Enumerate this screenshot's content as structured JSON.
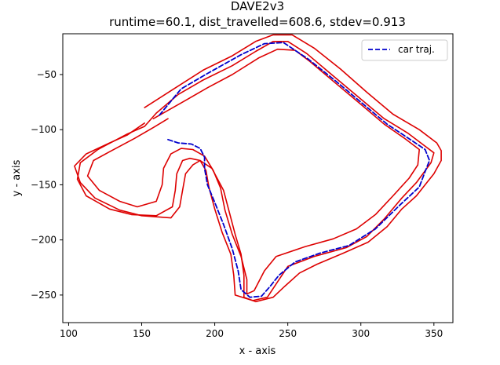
{
  "chart_data": {
    "type": "line",
    "title": "DAVE2v3",
    "subtitle": "runtime=60.1, dist_travelled=608.6, stdev=0.913",
    "xlabel": "x - axis",
    "ylabel": "y - axis",
    "xlim": [
      96,
      363
    ],
    "ylim": [
      -275,
      -13
    ],
    "xticks": [
      100,
      150,
      200,
      250,
      300,
      350
    ],
    "yticks": [
      -50,
      -100,
      -150,
      -200,
      -250
    ],
    "grid": false,
    "legend": {
      "placement": "top-right",
      "entries": [
        "car traj."
      ]
    },
    "series": [
      {
        "name": "car traj.",
        "style": "dashed",
        "color": "#0000cc",
        "points": [
          [
            168,
            -109
          ],
          [
            175,
            -112
          ],
          [
            184,
            -113
          ],
          [
            190,
            -117
          ],
          [
            193,
            -125
          ],
          [
            193,
            -135
          ],
          [
            195,
            -150
          ],
          [
            200,
            -166
          ],
          [
            206,
            -186
          ],
          [
            212,
            -208
          ],
          [
            216,
            -228
          ],
          [
            218,
            -245
          ],
          [
            224,
            -252
          ],
          [
            232,
            -251
          ],
          [
            238,
            -242
          ],
          [
            244,
            -232
          ],
          [
            255,
            -220
          ],
          [
            272,
            -212
          ],
          [
            292,
            -205
          ],
          [
            310,
            -190
          ],
          [
            327,
            -168
          ],
          [
            340,
            -152
          ],
          [
            344,
            -138
          ],
          [
            347,
            -128
          ],
          [
            344,
            -118
          ],
          [
            335,
            -110
          ],
          [
            318,
            -95
          ],
          [
            300,
            -75
          ],
          [
            282,
            -55
          ],
          [
            264,
            -36
          ],
          [
            247,
            -21
          ],
          [
            234,
            -22
          ],
          [
            218,
            -32
          ],
          [
            195,
            -49
          ],
          [
            177,
            -63
          ],
          [
            162,
            -87
          ]
        ]
      },
      {
        "name": "",
        "style": "solid",
        "color": "#dd0000",
        "points": [
          [
            158,
            -90
          ],
          [
            178,
            -75
          ],
          [
            195,
            -62
          ],
          [
            212,
            -50
          ],
          [
            230,
            -35
          ],
          [
            243,
            -27
          ],
          [
            255,
            -28
          ],
          [
            265,
            -38
          ],
          [
            282,
            -57
          ],
          [
            300,
            -77
          ],
          [
            316,
            -95
          ],
          [
            330,
            -108
          ],
          [
            340,
            -118
          ],
          [
            339,
            -132
          ],
          [
            333,
            -144
          ],
          [
            322,
            -160
          ],
          [
            310,
            -177
          ],
          [
            297,
            -190
          ],
          [
            281,
            -199
          ],
          [
            262,
            -206
          ],
          [
            242,
            -215
          ],
          [
            234,
            -228
          ],
          [
            227,
            -246
          ],
          [
            222,
            -249
          ],
          [
            222,
            -236
          ],
          [
            218,
            -215
          ],
          [
            212,
            -195
          ],
          [
            207,
            -173
          ],
          [
            204,
            -153
          ],
          [
            199,
            -137
          ],
          [
            193,
            -124
          ],
          [
            185,
            -118
          ],
          [
            177,
            -117
          ],
          [
            170,
            -122
          ],
          [
            165,
            -135
          ],
          [
            164,
            -150
          ],
          [
            160,
            -165
          ],
          [
            147,
            -170
          ],
          [
            135,
            -165
          ],
          [
            121,
            -155
          ],
          [
            113,
            -142
          ],
          [
            117,
            -128
          ],
          [
            128,
            -120
          ],
          [
            145,
            -108
          ],
          [
            158,
            -98
          ],
          [
            168,
            -90
          ]
        ]
      },
      {
        "name": "",
        "style": "solid",
        "color": "#dd0000",
        "points": [
          [
            160,
            -85
          ],
          [
            175,
            -68
          ],
          [
            192,
            -55
          ],
          [
            212,
            -42
          ],
          [
            228,
            -29
          ],
          [
            240,
            -20
          ],
          [
            250,
            -20
          ],
          [
            263,
            -31
          ],
          [
            280,
            -50
          ],
          [
            298,
            -70
          ],
          [
            316,
            -90
          ],
          [
            332,
            -103
          ],
          [
            343,
            -114
          ],
          [
            350,
            -121
          ],
          [
            348,
            -130
          ],
          [
            338,
            -148
          ],
          [
            328,
            -162
          ],
          [
            316,
            -181
          ],
          [
            304,
            -197
          ],
          [
            290,
            -207
          ],
          [
            268,
            -215
          ],
          [
            250,
            -224
          ],
          [
            244,
            -236
          ],
          [
            236,
            -252
          ],
          [
            226,
            -255
          ],
          [
            214,
            -250
          ],
          [
            213,
            -232
          ],
          [
            211,
            -213
          ],
          [
            205,
            -193
          ],
          [
            200,
            -172
          ],
          [
            196,
            -152
          ],
          [
            194,
            -137
          ],
          [
            190,
            -128
          ],
          [
            183,
            -126
          ],
          [
            178,
            -128
          ],
          [
            174,
            -140
          ],
          [
            173,
            -155
          ],
          [
            171,
            -170
          ],
          [
            160,
            -178
          ],
          [
            143,
            -177
          ],
          [
            128,
            -172
          ],
          [
            112,
            -160
          ],
          [
            106,
            -145
          ],
          [
            108,
            -130
          ],
          [
            120,
            -118
          ],
          [
            140,
            -104
          ],
          [
            152,
            -97
          ],
          [
            160,
            -85
          ]
        ]
      },
      {
        "name": "",
        "style": "solid",
        "color": "#dd0000",
        "points": [
          [
            152,
            -94
          ],
          [
            140,
            -105
          ],
          [
            128,
            -112
          ],
          [
            112,
            -122
          ],
          [
            104,
            -133
          ],
          [
            108,
            -148
          ],
          [
            118,
            -162
          ],
          [
            135,
            -173
          ],
          [
            150,
            -178
          ],
          [
            170,
            -180
          ],
          [
            176,
            -170
          ],
          [
            178,
            -155
          ],
          [
            180,
            -140
          ],
          [
            185,
            -132
          ],
          [
            190,
            -128
          ],
          [
            198,
            -135
          ],
          [
            206,
            -155
          ],
          [
            210,
            -175
          ],
          [
            214,
            -195
          ],
          [
            218,
            -213
          ],
          [
            220,
            -232
          ],
          [
            220,
            -252
          ],
          [
            228,
            -256
          ],
          [
            240,
            -252
          ],
          [
            248,
            -242
          ],
          [
            258,
            -230
          ],
          [
            270,
            -222
          ],
          [
            288,
            -212
          ],
          [
            305,
            -202
          ],
          [
            318,
            -188
          ],
          [
            328,
            -172
          ],
          [
            338,
            -160
          ],
          [
            344,
            -150
          ],
          [
            350,
            -140
          ],
          [
            355,
            -128
          ],
          [
            355,
            -119
          ],
          [
            352,
            -112
          ],
          [
            340,
            -100
          ],
          [
            322,
            -86
          ],
          [
            304,
            -66
          ],
          [
            286,
            -45
          ],
          [
            268,
            -26
          ],
          [
            253,
            -14
          ],
          [
            240,
            -14
          ],
          [
            228,
            -20
          ],
          [
            212,
            -33
          ],
          [
            192,
            -46
          ],
          [
            172,
            -63
          ],
          [
            152,
            -80
          ]
        ]
      }
    ],
    "title_visible": true
  }
}
